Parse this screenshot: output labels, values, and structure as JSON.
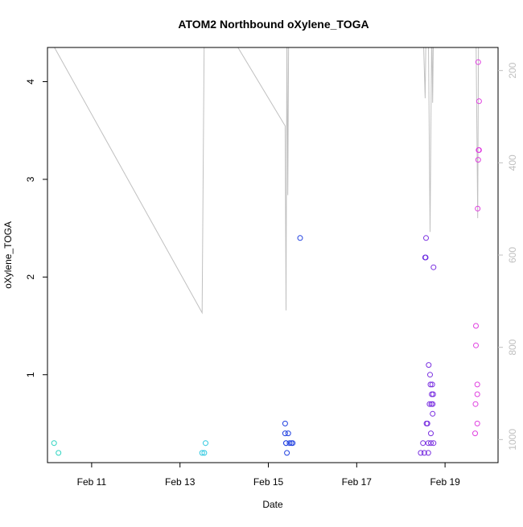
{
  "chart_data": {
    "type": "scatter",
    "title": "ATOM2 Northbound oXylene_TOGA",
    "xlabel": "Date",
    "ylabel": "oXylene_TOGA",
    "x_unit": "days (Feb 2017)",
    "xlim": [
      10.0,
      20.2
    ],
    "ylim": [
      0.1,
      4.35
    ],
    "x_ticks": [
      {
        "value": 11,
        "label": "Feb 11"
      },
      {
        "value": 13,
        "label": "Feb 13"
      },
      {
        "value": 15,
        "label": "Feb 15"
      },
      {
        "value": 17,
        "label": "Feb 17"
      },
      {
        "value": 19,
        "label": "Feb 19"
      }
    ],
    "y_ticks": [
      {
        "value": 1,
        "label": "1"
      },
      {
        "value": 2,
        "label": "2"
      },
      {
        "value": 3,
        "label": "3"
      },
      {
        "value": 4,
        "label": "4"
      }
    ],
    "secondary_y": {
      "comment_color": "#c0c0c0",
      "lim": [
        1050,
        150
      ],
      "ticks": [
        {
          "value": 200,
          "label": "200"
        },
        {
          "value": 400,
          "label": "400"
        },
        {
          "value": 600,
          "label": "600"
        },
        {
          "value": 800,
          "label": "800"
        },
        {
          "value": 1000,
          "label": "1000"
        }
      ]
    },
    "grid": false,
    "legend": "none",
    "line_color": "#c0c0c0",
    "pressure_line": [
      [
        10.1,
        140
      ],
      [
        13.5,
        725
      ],
      [
        13.55,
        100
      ],
      [
        14.25,
        140
      ],
      [
        15.38,
        320
      ],
      [
        15.4,
        720
      ],
      [
        15.42,
        100
      ],
      [
        15.44,
        470
      ],
      [
        15.46,
        100
      ],
      [
        18.5,
        100
      ],
      [
        18.55,
        260
      ],
      [
        18.57,
        100
      ],
      [
        18.62,
        100
      ],
      [
        18.66,
        550
      ],
      [
        18.7,
        100
      ],
      [
        18.72,
        270
      ],
      [
        18.74,
        100
      ],
      [
        19.7,
        100
      ],
      [
        19.74,
        520
      ],
      [
        19.76,
        100
      ]
    ],
    "points": [
      {
        "x": 10.15,
        "y": 0.3,
        "color": "#2dd4c0"
      },
      {
        "x": 10.25,
        "y": 0.2,
        "color": "#2dd4c0"
      },
      {
        "x": 13.5,
        "y": 0.2,
        "color": "#2ec8e0"
      },
      {
        "x": 13.55,
        "y": 0.2,
        "color": "#2ec8e0"
      },
      {
        "x": 13.58,
        "y": 0.3,
        "color": "#2ec8e0"
      },
      {
        "x": 15.38,
        "y": 0.5,
        "color": "#2040e0"
      },
      {
        "x": 15.38,
        "y": 0.4,
        "color": "#2040e0"
      },
      {
        "x": 15.4,
        "y": 0.3,
        "color": "#2040e0"
      },
      {
        "x": 15.42,
        "y": 0.2,
        "color": "#2040e0"
      },
      {
        "x": 15.45,
        "y": 0.4,
        "color": "#2040e0"
      },
      {
        "x": 15.48,
        "y": 0.3,
        "color": "#2040e0"
      },
      {
        "x": 15.52,
        "y": 0.3,
        "color": "#2040e0"
      },
      {
        "x": 15.55,
        "y": 0.3,
        "color": "#2040e0"
      },
      {
        "x": 15.4,
        "y": 0.3,
        "color": "#2040e0"
      },
      {
        "x": 15.72,
        "y": 2.4,
        "color": "#2040e0"
      },
      {
        "x": 18.45,
        "y": 0.2,
        "color": "#7a30e0"
      },
      {
        "x": 18.5,
        "y": 0.3,
        "color": "#7a30e0"
      },
      {
        "x": 18.53,
        "y": 0.2,
        "color": "#7a30e0"
      },
      {
        "x": 18.55,
        "y": 2.2,
        "color": "#6b2ae0"
      },
      {
        "x": 18.57,
        "y": 2.4,
        "color": "#7a30e0"
      },
      {
        "x": 18.56,
        "y": 2.2,
        "color": "#6b2ae0"
      },
      {
        "x": 18.58,
        "y": 0.5,
        "color": "#7a30e0"
      },
      {
        "x": 18.6,
        "y": 0.5,
        "color": "#7a30e0"
      },
      {
        "x": 18.62,
        "y": 0.3,
        "color": "#7a30e0"
      },
      {
        "x": 18.62,
        "y": 0.2,
        "color": "#7a30e0"
      },
      {
        "x": 18.63,
        "y": 1.1,
        "color": "#7a30e0"
      },
      {
        "x": 18.65,
        "y": 0.7,
        "color": "#7a30e0"
      },
      {
        "x": 18.66,
        "y": 1.0,
        "color": "#7a30e0"
      },
      {
        "x": 18.67,
        "y": 0.9,
        "color": "#7a30e0"
      },
      {
        "x": 18.68,
        "y": 0.4,
        "color": "#7a30e0"
      },
      {
        "x": 18.68,
        "y": 0.3,
        "color": "#7a30e0"
      },
      {
        "x": 18.69,
        "y": 0.7,
        "color": "#7a30e0"
      },
      {
        "x": 18.7,
        "y": 0.8,
        "color": "#7a30e0"
      },
      {
        "x": 18.71,
        "y": 0.9,
        "color": "#7a30e0"
      },
      {
        "x": 18.72,
        "y": 0.6,
        "color": "#7a30e0"
      },
      {
        "x": 18.72,
        "y": 0.7,
        "color": "#7a30e0"
      },
      {
        "x": 18.73,
        "y": 0.8,
        "color": "#7a30e0"
      },
      {
        "x": 18.74,
        "y": 2.1,
        "color": "#7a30e0"
      },
      {
        "x": 18.74,
        "y": 0.3,
        "color": "#7a30e0"
      },
      {
        "x": 19.68,
        "y": 0.4,
        "color": "#e040e0"
      },
      {
        "x": 19.69,
        "y": 0.7,
        "color": "#e040e0"
      },
      {
        "x": 19.7,
        "y": 1.3,
        "color": "#e040e0"
      },
      {
        "x": 19.7,
        "y": 1.5,
        "color": "#e040e0"
      },
      {
        "x": 19.73,
        "y": 0.5,
        "color": "#e040e0"
      },
      {
        "x": 19.73,
        "y": 0.8,
        "color": "#e040e0"
      },
      {
        "x": 19.73,
        "y": 0.9,
        "color": "#e040e0"
      },
      {
        "x": 19.74,
        "y": 2.7,
        "color": "#e040e0"
      },
      {
        "x": 19.75,
        "y": 3.2,
        "color": "#e040e0"
      },
      {
        "x": 19.76,
        "y": 3.3,
        "color": "#e040e0"
      },
      {
        "x": 19.77,
        "y": 3.3,
        "color": "#e040e0"
      },
      {
        "x": 19.77,
        "y": 3.8,
        "color": "#e040e0"
      },
      {
        "x": 19.75,
        "y": 4.2,
        "color": "#e040e0"
      }
    ]
  }
}
